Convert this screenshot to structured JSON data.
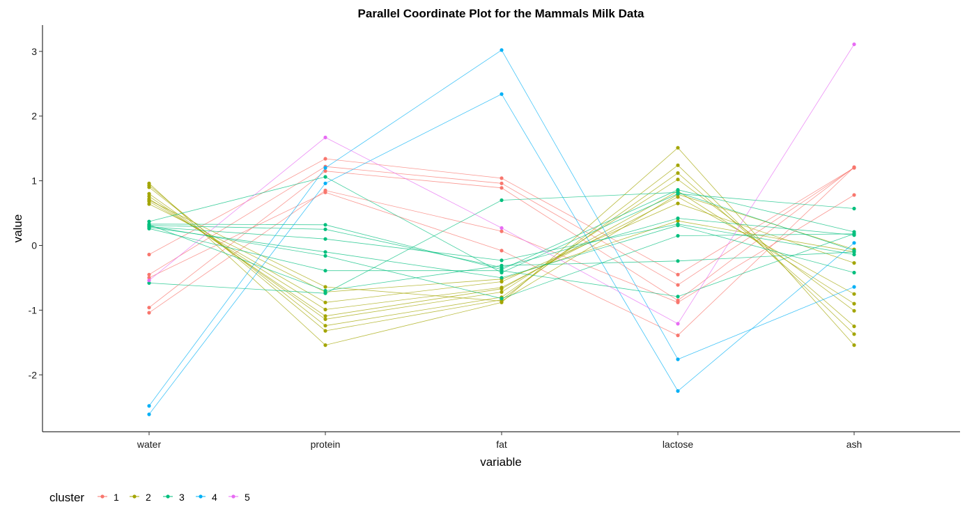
{
  "chart_data": {
    "type": "line",
    "title": "Parallel Coordinate Plot for the Mammals Milk Data",
    "xlabel": "variable",
    "ylabel": "value",
    "categories": [
      "water",
      "protein",
      "fat",
      "lactose",
      "ash"
    ],
    "y_ticks": [
      3,
      2,
      1,
      0,
      -1,
      -2
    ],
    "y_tick_labels": [
      "3",
      "2",
      "1",
      "0",
      "-1",
      "-2"
    ],
    "ylim": [
      -2.9,
      3.4
    ],
    "grid": false,
    "legend": {
      "title": "cluster",
      "position": "bottom-left",
      "entries": [
        "1",
        "2",
        "3",
        "4",
        "5"
      ]
    },
    "cluster_colors": {
      "1": "#F8766D",
      "2": "#A3A500",
      "3": "#00BF7D",
      "4": "#00B0F6",
      "5": "#E76BF3"
    },
    "series": [
      {
        "cluster": "1",
        "values": [
          -0.14,
          1.34,
          1.04,
          -0.45,
          1.2
        ]
      },
      {
        "cluster": "1",
        "values": [
          -0.45,
          1.22,
          0.96,
          -0.61,
          1.2
        ]
      },
      {
        "cluster": "1",
        "values": [
          -0.96,
          1.15,
          0.89,
          -0.85,
          1.21
        ]
      },
      {
        "cluster": "1",
        "values": [
          -1.04,
          0.85,
          0.22,
          -0.88,
          0.78
        ]
      },
      {
        "cluster": "1",
        "values": [
          -0.5,
          0.82,
          -0.08,
          -1.39,
          1.21
        ]
      },
      {
        "cluster": "2",
        "values": [
          0.96,
          -1.54,
          -0.88,
          1.51,
          -1.54
        ]
      },
      {
        "cluster": "2",
        "values": [
          0.93,
          -1.32,
          -0.84,
          1.24,
          -1.37
        ]
      },
      {
        "cluster": "2",
        "values": [
          0.9,
          -1.24,
          -0.8,
          1.12,
          -1.25
        ]
      },
      {
        "cluster": "2",
        "values": [
          0.8,
          -1.14,
          -0.72,
          1.02,
          -1.01
        ]
      },
      {
        "cluster": "2",
        "values": [
          0.76,
          -1.09,
          -0.67,
          0.84,
          -0.9
        ]
      },
      {
        "cluster": "2",
        "values": [
          0.72,
          -0.99,
          -0.65,
          0.75,
          -0.75
        ]
      },
      {
        "cluster": "2",
        "values": [
          0.68,
          -0.88,
          -0.56,
          0.65,
          -0.27
        ]
      },
      {
        "cluster": "2",
        "values": [
          0.64,
          -0.72,
          -0.52,
          0.38,
          -0.1
        ]
      },
      {
        "cluster": "2",
        "values": [
          0.7,
          -0.64,
          -0.86,
          0.79,
          -0.06
        ]
      },
      {
        "cluster": "3",
        "values": [
          0.37,
          1.06,
          -0.42,
          0.8,
          0.57
        ]
      },
      {
        "cluster": "3",
        "values": [
          0.33,
          0.32,
          -0.37,
          0.86,
          0.21
        ]
      },
      {
        "cluster": "3",
        "values": [
          0.31,
          0.25,
          -0.34,
          0.42,
          0.16
        ]
      },
      {
        "cluster": "3",
        "values": [
          0.29,
          0.1,
          -0.23,
          0.33,
          -0.14
        ]
      },
      {
        "cluster": "3",
        "values": [
          0.28,
          -0.1,
          -0.5,
          0.31,
          -0.42
        ]
      },
      {
        "cluster": "3",
        "values": [
          0.3,
          -0.16,
          -0.82,
          0.15,
          0.18
        ]
      },
      {
        "cluster": "3",
        "values": [
          -0.58,
          -0.74,
          0.7,
          0.82,
          -0.08
        ]
      },
      {
        "cluster": "3",
        "values": [
          0.26,
          -0.39,
          -0.39,
          -0.79,
          0.18
        ]
      },
      {
        "cluster": "3",
        "values": [
          0.32,
          -0.7,
          -0.31,
          -0.24,
          -0.1
        ]
      },
      {
        "cluster": "4",
        "values": [
          -2.48,
          1.2,
          3.02,
          -1.76,
          -0.64
        ]
      },
      {
        "cluster": "4",
        "values": [
          -2.61,
          0.96,
          2.34,
          -2.25,
          0.04
        ]
      },
      {
        "cluster": "5",
        "values": [
          -0.54,
          1.67,
          0.27,
          -1.21,
          3.11
        ]
      }
    ]
  }
}
